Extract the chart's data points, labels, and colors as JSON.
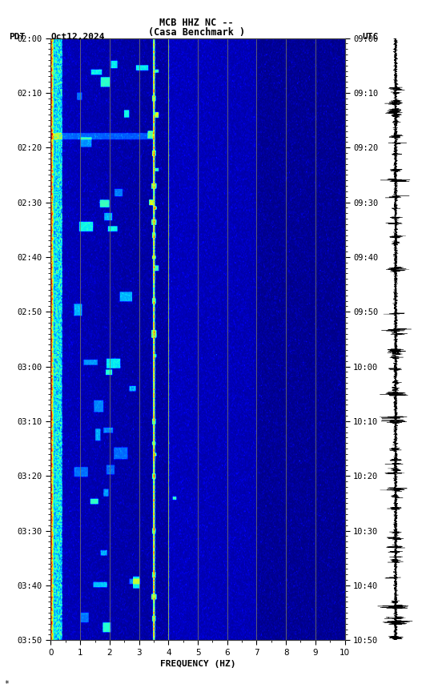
{
  "title_line1": "MCB HHZ NC --",
  "title_line2": "(Casa Benchmark )",
  "left_label": "PDT",
  "date_label": "Oct12,2024",
  "right_label": "UTC",
  "xlabel": "FREQUENCY (HZ)",
  "freq_min": 0,
  "freq_max": 10,
  "freq_ticks": [
    0,
    1,
    2,
    3,
    4,
    5,
    6,
    7,
    8,
    9,
    10
  ],
  "time_left_labels": [
    "02:00",
    "02:10",
    "02:20",
    "02:30",
    "02:40",
    "02:50",
    "03:00",
    "03:10",
    "03:20",
    "03:30",
    "03:40",
    "03:50"
  ],
  "time_right_labels": [
    "09:00",
    "09:10",
    "09:20",
    "09:30",
    "09:40",
    "09:50",
    "10:00",
    "10:10",
    "10:20",
    "10:30",
    "10:40",
    "10:50"
  ],
  "duration_minutes": 110,
  "background_color": "#000020",
  "figure_bg": "#ffffff",
  "font_color": "#000000",
  "grid_color": "#808060",
  "colormap": "jet",
  "vmin": 0.0,
  "vmax": 1.0
}
